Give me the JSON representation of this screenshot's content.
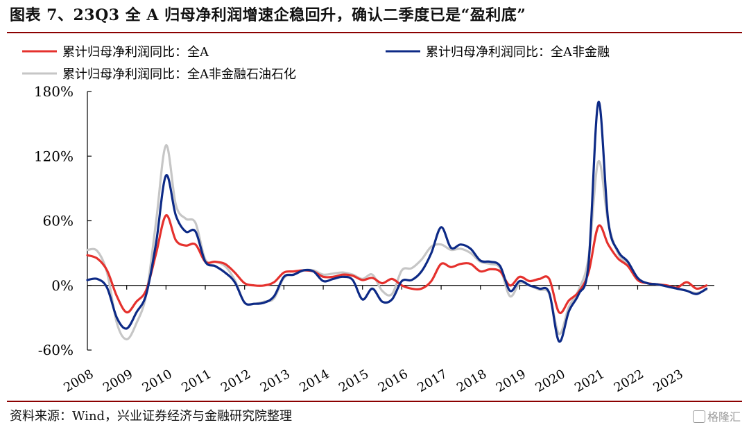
{
  "title": "图表 7、23Q3 全 A 归母净利润增速企稳回升，确认二季度已是“盈利底”",
  "source": "资料来源：Wind，兴业证券经济与金融研究院整理",
  "watermark": "格隆汇",
  "colors": {
    "red": "#e5312d",
    "blue": "#0d2a86",
    "gray": "#c6c6c6",
    "rule": "#8b0000"
  },
  "chart_data": {
    "type": "line",
    "title": "",
    "xlabel": "",
    "ylabel": "",
    "ylim": [
      -60,
      180
    ],
    "xlim": [
      2008.0,
      2023.95
    ],
    "yticks": [
      -60,
      0,
      60,
      120,
      180
    ],
    "ytick_labels": [
      "-60%",
      "0%",
      "60%",
      "120%",
      "180%"
    ],
    "xticks": [
      2008,
      2009,
      2010,
      2011,
      2012,
      2013,
      2014,
      2015,
      2016,
      2017,
      2018,
      2019,
      2020,
      2021,
      2022,
      2023
    ],
    "legend_position": "top",
    "series": [
      {
        "name": "累计归母净利润同比：全A",
        "color": "#e5312d",
        "points": [
          [
            2008.0,
            28
          ],
          [
            2008.25,
            25
          ],
          [
            2008.5,
            14
          ],
          [
            2008.75,
            -10
          ],
          [
            2009.0,
            -25
          ],
          [
            2009.25,
            -15
          ],
          [
            2009.5,
            -4
          ],
          [
            2009.75,
            30
          ],
          [
            2010.0,
            65
          ],
          [
            2010.25,
            42
          ],
          [
            2010.5,
            37
          ],
          [
            2010.75,
            38
          ],
          [
            2011.0,
            22
          ],
          [
            2011.25,
            22
          ],
          [
            2011.5,
            20
          ],
          [
            2011.75,
            12
          ],
          [
            2012.0,
            2
          ],
          [
            2012.25,
            0
          ],
          [
            2012.5,
            0
          ],
          [
            2012.75,
            3
          ],
          [
            2013.0,
            12
          ],
          [
            2013.25,
            13
          ],
          [
            2013.5,
            14
          ],
          [
            2013.75,
            13
          ],
          [
            2014.0,
            8
          ],
          [
            2014.25,
            8
          ],
          [
            2014.5,
            10
          ],
          [
            2014.75,
            9
          ],
          [
            2015.0,
            5
          ],
          [
            2015.25,
            7
          ],
          [
            2015.5,
            2
          ],
          [
            2015.75,
            6
          ],
          [
            2016.0,
            0
          ],
          [
            2016.25,
            -3
          ],
          [
            2016.5,
            -3
          ],
          [
            2016.75,
            4
          ],
          [
            2017.0,
            20
          ],
          [
            2017.25,
            17
          ],
          [
            2017.5,
            20
          ],
          [
            2017.75,
            20
          ],
          [
            2018.0,
            13
          ],
          [
            2018.25,
            15
          ],
          [
            2018.5,
            13
          ],
          [
            2018.75,
            0
          ],
          [
            2019.0,
            8
          ],
          [
            2019.25,
            4
          ],
          [
            2019.5,
            6
          ],
          [
            2019.75,
            6
          ],
          [
            2020.0,
            -25
          ],
          [
            2020.25,
            -14
          ],
          [
            2020.5,
            -6
          ],
          [
            2020.75,
            12
          ],
          [
            2021.0,
            55
          ],
          [
            2021.25,
            38
          ],
          [
            2021.5,
            25
          ],
          [
            2021.75,
            18
          ],
          [
            2022.0,
            5
          ],
          [
            2022.25,
            2
          ],
          [
            2022.5,
            1
          ],
          [
            2022.75,
            0
          ],
          [
            2023.0,
            -2
          ],
          [
            2023.25,
            3
          ],
          [
            2023.5,
            -3
          ],
          [
            2023.75,
            0
          ]
        ]
      },
      {
        "name": "累计归母净利润同比：全A非金融",
        "color": "#0d2a86",
        "points": [
          [
            2008.0,
            5
          ],
          [
            2008.25,
            6
          ],
          [
            2008.5,
            -2
          ],
          [
            2008.75,
            -30
          ],
          [
            2009.0,
            -40
          ],
          [
            2009.25,
            -25
          ],
          [
            2009.5,
            -8
          ],
          [
            2009.75,
            40
          ],
          [
            2010.0,
            102
          ],
          [
            2010.25,
            65
          ],
          [
            2010.5,
            50
          ],
          [
            2010.75,
            50
          ],
          [
            2011.0,
            22
          ],
          [
            2011.25,
            18
          ],
          [
            2011.5,
            12
          ],
          [
            2011.75,
            3
          ],
          [
            2012.0,
            -16
          ],
          [
            2012.25,
            -17
          ],
          [
            2012.5,
            -16
          ],
          [
            2012.75,
            -10
          ],
          [
            2013.0,
            8
          ],
          [
            2013.25,
            10
          ],
          [
            2013.5,
            14
          ],
          [
            2013.75,
            13
          ],
          [
            2014.0,
            4
          ],
          [
            2014.25,
            6
          ],
          [
            2014.5,
            8
          ],
          [
            2014.75,
            5
          ],
          [
            2015.0,
            -13
          ],
          [
            2015.25,
            -3
          ],
          [
            2015.5,
            -15
          ],
          [
            2015.75,
            -13
          ],
          [
            2016.0,
            4
          ],
          [
            2016.25,
            5
          ],
          [
            2016.5,
            13
          ],
          [
            2016.75,
            30
          ],
          [
            2017.0,
            54
          ],
          [
            2017.25,
            35
          ],
          [
            2017.5,
            38
          ],
          [
            2017.75,
            34
          ],
          [
            2018.0,
            23
          ],
          [
            2018.25,
            22
          ],
          [
            2018.5,
            18
          ],
          [
            2018.75,
            -5
          ],
          [
            2019.0,
            4
          ],
          [
            2019.25,
            0
          ],
          [
            2019.5,
            -3
          ],
          [
            2019.75,
            -7
          ],
          [
            2020.0,
            -52
          ],
          [
            2020.25,
            -24
          ],
          [
            2020.5,
            -8
          ],
          [
            2020.75,
            20
          ],
          [
            2021.0,
            170
          ],
          [
            2021.25,
            60
          ],
          [
            2021.5,
            32
          ],
          [
            2021.75,
            22
          ],
          [
            2022.0,
            7
          ],
          [
            2022.25,
            2
          ],
          [
            2022.5,
            1
          ],
          [
            2022.75,
            -1
          ],
          [
            2023.0,
            -3
          ],
          [
            2023.25,
            -5
          ],
          [
            2023.5,
            -8
          ],
          [
            2023.75,
            -3
          ]
        ]
      },
      {
        "name": "累计归母净利润同比：全A非金融石油石化",
        "color": "#c6c6c6",
        "points": [
          [
            2008.0,
            33
          ],
          [
            2008.25,
            32
          ],
          [
            2008.5,
            12
          ],
          [
            2008.75,
            -35
          ],
          [
            2009.0,
            -50
          ],
          [
            2009.25,
            -35
          ],
          [
            2009.5,
            -8
          ],
          [
            2009.75,
            60
          ],
          [
            2010.0,
            130
          ],
          [
            2010.25,
            75
          ],
          [
            2010.5,
            62
          ],
          [
            2010.75,
            58
          ],
          [
            2011.0,
            24
          ],
          [
            2011.25,
            22
          ],
          [
            2011.5,
            18
          ],
          [
            2011.75,
            5
          ],
          [
            2012.0,
            -16
          ],
          [
            2012.25,
            -17
          ],
          [
            2012.5,
            -15
          ],
          [
            2012.75,
            -12
          ],
          [
            2013.0,
            7
          ],
          [
            2013.25,
            10
          ],
          [
            2013.5,
            14
          ],
          [
            2013.75,
            14
          ],
          [
            2014.0,
            10
          ],
          [
            2014.25,
            11
          ],
          [
            2014.5,
            12
          ],
          [
            2014.75,
            10
          ],
          [
            2015.0,
            6
          ],
          [
            2015.25,
            10
          ],
          [
            2015.5,
            -5
          ],
          [
            2015.75,
            -8
          ],
          [
            2016.0,
            14
          ],
          [
            2016.25,
            16
          ],
          [
            2016.5,
            24
          ],
          [
            2016.75,
            36
          ],
          [
            2017.0,
            38
          ],
          [
            2017.25,
            33
          ],
          [
            2017.5,
            34
          ],
          [
            2017.75,
            30
          ],
          [
            2018.0,
            22
          ],
          [
            2018.25,
            20
          ],
          [
            2018.5,
            16
          ],
          [
            2018.75,
            -10
          ],
          [
            2019.0,
            2
          ],
          [
            2019.25,
            0
          ],
          [
            2019.5,
            -4
          ],
          [
            2019.75,
            -8
          ],
          [
            2020.0,
            -45
          ],
          [
            2020.25,
            -20
          ],
          [
            2020.5,
            -4
          ],
          [
            2020.75,
            26
          ],
          [
            2021.0,
            115
          ],
          [
            2021.25,
            58
          ],
          [
            2021.5,
            30
          ],
          [
            2021.75,
            19
          ],
          [
            2022.0,
            6
          ],
          [
            2022.25,
            2
          ],
          [
            2022.5,
            1
          ],
          [
            2022.75,
            -1
          ],
          [
            2023.0,
            -3
          ],
          [
            2023.25,
            -5
          ],
          [
            2023.5,
            -7
          ],
          [
            2023.75,
            -4
          ]
        ]
      }
    ]
  }
}
